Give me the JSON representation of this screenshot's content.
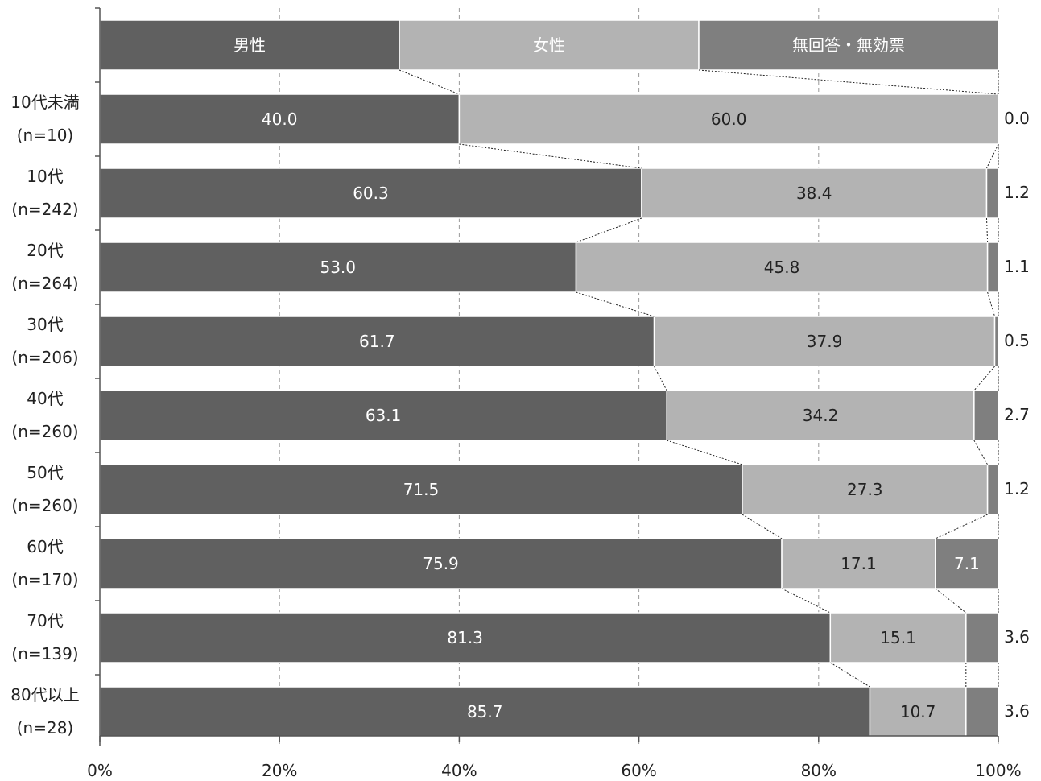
{
  "chart_data": {
    "type": "bar",
    "orientation": "horizontal",
    "stacked": true,
    "legend_placement": "top",
    "grid": true,
    "xlim": [
      0,
      100
    ],
    "x_ticks": [
      "0%",
      "20%",
      "40%",
      "60%",
      "80%",
      "100%"
    ],
    "legend": [
      "男性",
      "女性",
      "無回答・無効票"
    ],
    "categories": [
      {
        "name": "10代未満",
        "n": "(n=10)"
      },
      {
        "name": "10代",
        "n": "(n=242)"
      },
      {
        "name": "20代",
        "n": "(n=264)"
      },
      {
        "name": "30代",
        "n": "(n=206)"
      },
      {
        "name": "40代",
        "n": "(n=260)"
      },
      {
        "name": "50代",
        "n": "(n=260)"
      },
      {
        "name": "60代",
        "n": "(n=170)"
      },
      {
        "name": "70代",
        "n": "(n=139)"
      },
      {
        "name": "80代以上",
        "n": "(n=28)"
      }
    ],
    "series": [
      {
        "name": "男性",
        "color": "#606060",
        "values": [
          40.0,
          60.3,
          53.0,
          61.7,
          63.1,
          71.5,
          75.9,
          81.3,
          85.7
        ]
      },
      {
        "name": "女性",
        "color": "#b3b3b3",
        "values": [
          60.0,
          38.4,
          45.8,
          37.9,
          34.2,
          27.3,
          17.1,
          15.1,
          10.7
        ]
      },
      {
        "name": "無回答・無効票",
        "color": "#7f7f7f",
        "values": [
          0.0,
          1.2,
          1.1,
          0.5,
          2.7,
          1.2,
          7.1,
          3.6,
          3.6
        ]
      }
    ],
    "labels": [
      [
        "40.0",
        "60.0",
        "0.0"
      ],
      [
        "60.3",
        "38.4",
        "1.2"
      ],
      [
        "53.0",
        "45.8",
        "1.1"
      ],
      [
        "61.7",
        "37.9",
        "0.5"
      ],
      [
        "63.1",
        "34.2",
        "2.7"
      ],
      [
        "71.5",
        "27.3",
        "1.2"
      ],
      [
        "75.9",
        "17.1",
        "7.1"
      ],
      [
        "81.3",
        "15.1",
        "3.6"
      ],
      [
        "85.7",
        "10.7",
        "3.6"
      ]
    ]
  }
}
